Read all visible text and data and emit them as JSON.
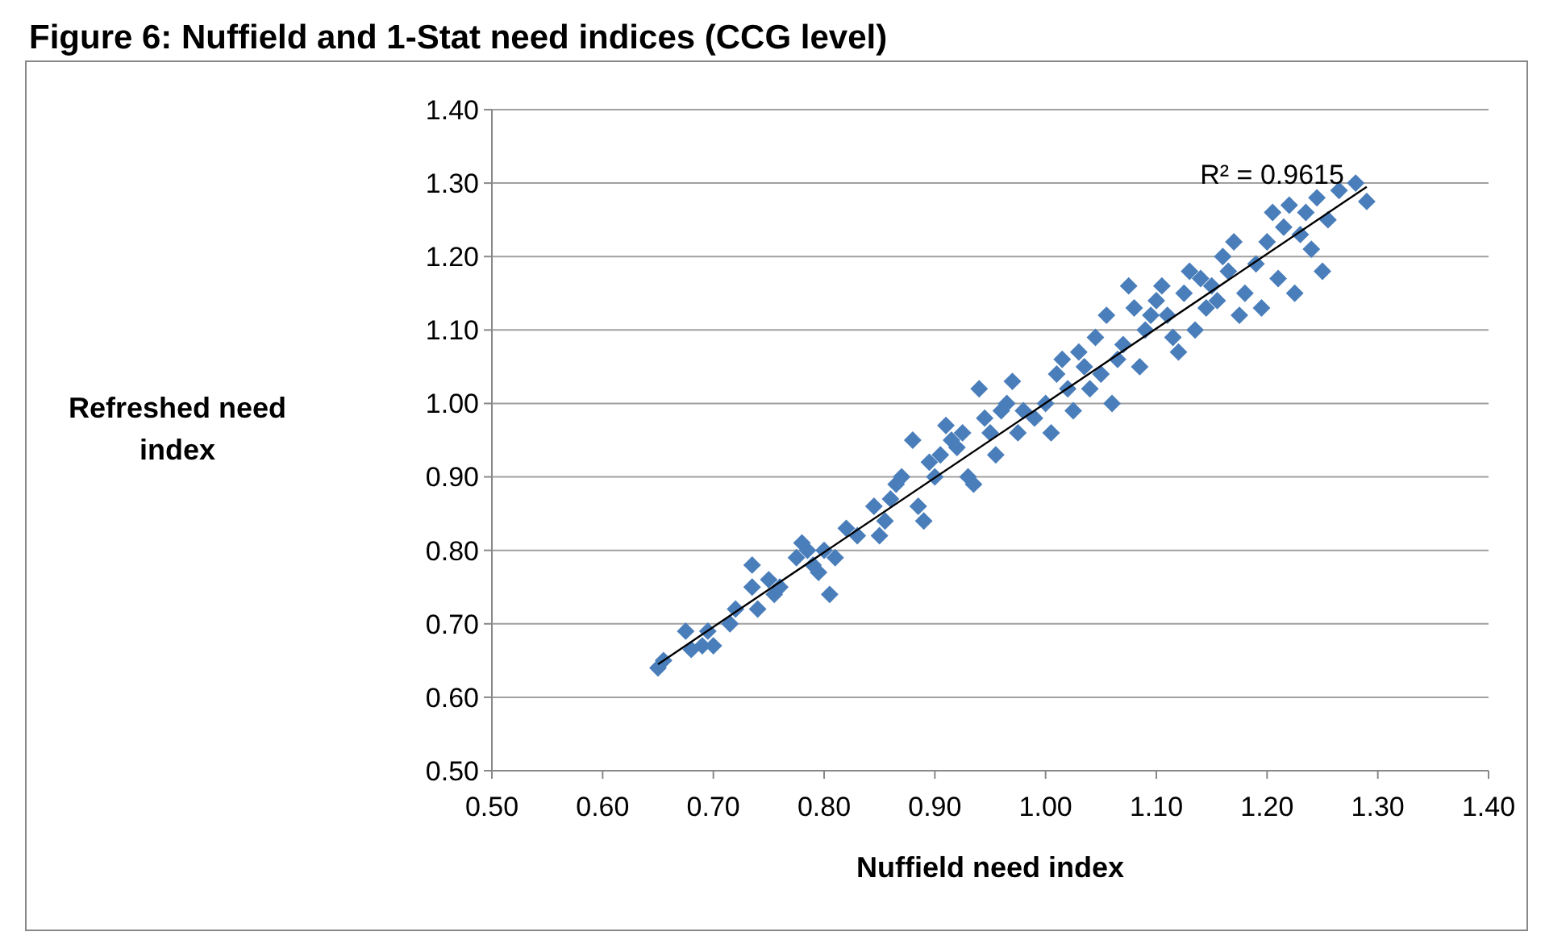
{
  "chart_data": {
    "type": "scatter",
    "title": "Figure 6: Nuffield and 1-Stat need indices (CCG level)",
    "xlabel": "Nuffield need index",
    "ylabel": "Refreshed need index",
    "annotations": [
      "R² = 0.9615"
    ],
    "xlim": [
      0.5,
      1.4
    ],
    "xticks": [
      {
        "value": 0.5,
        "label": "0.50"
      },
      {
        "value": 0.6,
        "label": "0.60"
      },
      {
        "value": 0.7,
        "label": "0.70"
      },
      {
        "value": 0.8,
        "label": "0.80"
      },
      {
        "value": 0.9,
        "label": "0.90"
      },
      {
        "value": 1.0,
        "label": "1.00"
      },
      {
        "value": 1.1,
        "label": "1.10"
      },
      {
        "value": 1.2,
        "label": "1.20"
      },
      {
        "value": 1.3,
        "label": "1.30"
      },
      {
        "value": 1.4,
        "label": "1.40"
      }
    ],
    "ylim": [
      0.5,
      1.4
    ],
    "yticks": [
      {
        "value": 0.5,
        "label": "0.50"
      },
      {
        "value": 0.6,
        "label": "0.60"
      },
      {
        "value": 0.7,
        "label": "0.70"
      },
      {
        "value": 0.8,
        "label": "0.80"
      },
      {
        "value": 0.9,
        "label": "0.90"
      },
      {
        "value": 1.0,
        "label": "1.00"
      },
      {
        "value": 1.1,
        "label": "1.10"
      },
      {
        "value": 1.2,
        "label": "1.20"
      },
      {
        "value": 1.3,
        "label": "1.30"
      },
      {
        "value": 1.4,
        "label": "1.40"
      }
    ],
    "grid": "y",
    "marker": "diamond",
    "series": [
      {
        "color": "#4a7ebb",
        "x": [
          0.65,
          0.655,
          0.675,
          0.68,
          0.69,
          0.695,
          0.7,
          0.715,
          0.72,
          0.735,
          0.735,
          0.74,
          0.75,
          0.755,
          0.76,
          0.775,
          0.78,
          0.785,
          0.79,
          0.795,
          0.8,
          0.805,
          0.81,
          0.82,
          0.83,
          0.845,
          0.85,
          0.855,
          0.86,
          0.865,
          0.87,
          0.88,
          0.885,
          0.89,
          0.895,
          0.9,
          0.905,
          0.91,
          0.915,
          0.92,
          0.925,
          0.93,
          0.935,
          0.94,
          0.945,
          0.95,
          0.955,
          0.96,
          0.965,
          0.97,
          0.975,
          0.98,
          0.99,
          1.0,
          1.005,
          1.01,
          1.015,
          1.02,
          1.025,
          1.03,
          1.035,
          1.04,
          1.045,
          1.05,
          1.055,
          1.06,
          1.065,
          1.07,
          1.075,
          1.08,
          1.085,
          1.09,
          1.095,
          1.1,
          1.105,
          1.11,
          1.115,
          1.12,
          1.125,
          1.13,
          1.135,
          1.14,
          1.145,
          1.15,
          1.155,
          1.16,
          1.165,
          1.17,
          1.175,
          1.18,
          1.19,
          1.195,
          1.2,
          1.205,
          1.21,
          1.215,
          1.22,
          1.225,
          1.23,
          1.235,
          1.24,
          1.245,
          1.25,
          1.255,
          1.265,
          1.28,
          1.29
        ],
        "values": [
          0.64,
          0.65,
          0.69,
          0.665,
          0.67,
          0.69,
          0.67,
          0.7,
          0.72,
          0.75,
          0.78,
          0.72,
          0.76,
          0.74,
          0.75,
          0.79,
          0.81,
          0.8,
          0.78,
          0.77,
          0.8,
          0.74,
          0.79,
          0.83,
          0.82,
          0.86,
          0.82,
          0.84,
          0.87,
          0.89,
          0.9,
          0.95,
          0.86,
          0.84,
          0.92,
          0.9,
          0.93,
          0.97,
          0.95,
          0.94,
          0.96,
          0.9,
          0.89,
          1.02,
          0.98,
          0.96,
          0.93,
          0.99,
          1.0,
          1.03,
          0.96,
          0.99,
          0.98,
          1.0,
          0.96,
          1.04,
          1.06,
          1.02,
          0.99,
          1.07,
          1.05,
          1.02,
          1.09,
          1.04,
          1.12,
          1.0,
          1.06,
          1.08,
          1.16,
          1.13,
          1.05,
          1.1,
          1.12,
          1.14,
          1.16,
          1.12,
          1.09,
          1.07,
          1.15,
          1.18,
          1.1,
          1.17,
          1.13,
          1.16,
          1.14,
          1.2,
          1.18,
          1.22,
          1.12,
          1.15,
          1.19,
          1.13,
          1.22,
          1.26,
          1.17,
          1.24,
          1.27,
          1.15,
          1.23,
          1.26,
          1.21,
          1.28,
          1.18,
          1.25,
          1.29,
          1.3,
          1.275
        ]
      },
      {
        "type": "line",
        "color": "#000000",
        "x": [
          0.65,
          1.29
        ],
        "values": [
          0.645,
          1.295
        ],
        "marker": "none",
        "line_style": "solid"
      }
    ]
  }
}
